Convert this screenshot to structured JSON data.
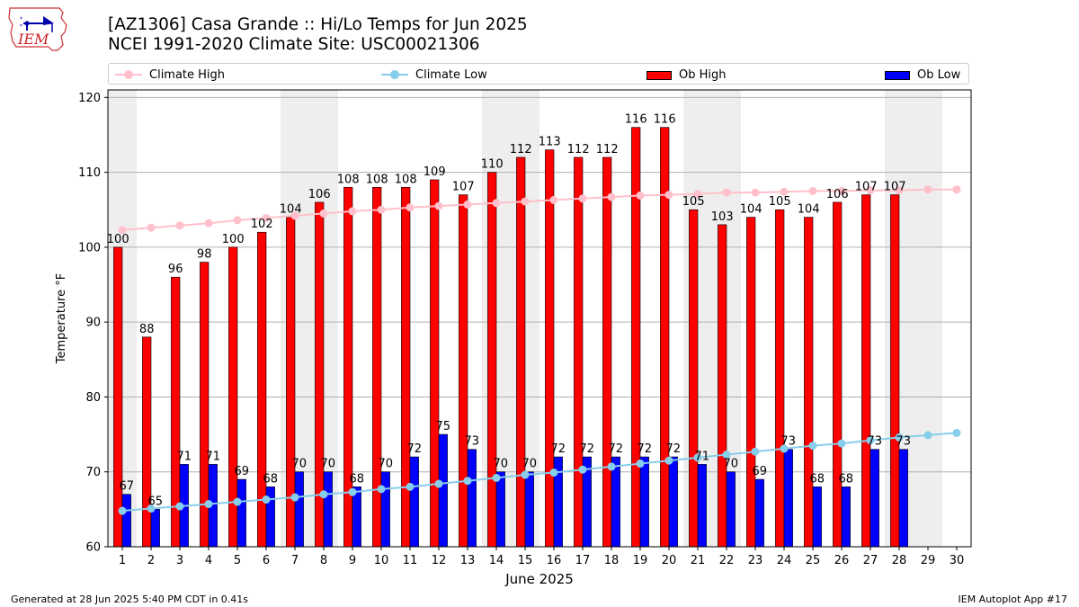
{
  "header": {
    "logo_text": "IEM",
    "title_line1": "[AZ1306] Casa Grande :: Hi/Lo Temps for Jun 2025",
    "title_line2": "NCEI 1991-2020 Climate Site: USC00021306"
  },
  "legend": {
    "climate_high": "Climate High",
    "climate_low": "Climate Low",
    "ob_high": "Ob High",
    "ob_low": "Ob Low"
  },
  "footer": {
    "generated": "Generated at 28 Jun 2025 5:40 PM CDT in 0.41s",
    "app": "IEM Autoplot App #17"
  },
  "colors": {
    "ob_high": "#ff0000",
    "ob_low": "#0000ff",
    "climate_high": "#ffc0cb",
    "climate_low": "#87ceeb",
    "weekend_band": "#eeeeee",
    "grid": "#b0b0b0"
  },
  "chart_data": {
    "type": "bar",
    "xlabel": "June 2025",
    "ylabel": "Temperature °F",
    "ylim": [
      60,
      121
    ],
    "yticks": [
      60,
      70,
      80,
      90,
      100,
      110,
      120
    ],
    "grid": "horizontal",
    "legend_position": "top",
    "x": [
      1,
      2,
      3,
      4,
      5,
      6,
      7,
      8,
      9,
      10,
      11,
      12,
      13,
      14,
      15,
      16,
      17,
      18,
      19,
      20,
      21,
      22,
      23,
      24,
      25,
      26,
      27,
      28,
      29,
      30
    ],
    "weekend_days": [
      1,
      7,
      8,
      14,
      15,
      21,
      22,
      28,
      29
    ],
    "series": [
      {
        "name": "Ob High",
        "kind": "bar",
        "values": [
          100,
          88,
          96,
          98,
          100,
          102,
          104,
          106,
          108,
          108,
          108,
          109,
          107,
          110,
          112,
          113,
          112,
          112,
          116,
          116,
          105,
          103,
          104,
          105,
          104,
          106,
          107,
          107,
          null,
          null
        ]
      },
      {
        "name": "Ob Low",
        "kind": "bar",
        "values": [
          67,
          65,
          71,
          71,
          69,
          68,
          70,
          70,
          68,
          70,
          72,
          75,
          73,
          70,
          70,
          72,
          72,
          72,
          72,
          72,
          71,
          70,
          69,
          73,
          68,
          68,
          73,
          73,
          null,
          null
        ]
      },
      {
        "name": "Climate High",
        "kind": "line",
        "values": [
          102.3,
          102.6,
          102.9,
          103.2,
          103.6,
          103.9,
          104.2,
          104.5,
          104.8,
          105.0,
          105.3,
          105.5,
          105.7,
          105.9,
          106.1,
          106.3,
          106.5,
          106.7,
          106.9,
          107.0,
          107.1,
          107.3,
          107.3,
          107.4,
          107.5,
          107.5,
          107.6,
          107.6,
          107.7,
          107.7
        ]
      },
      {
        "name": "Climate Low",
        "kind": "line",
        "values": [
          64.8,
          65.1,
          65.4,
          65.7,
          66.0,
          66.3,
          66.6,
          67.0,
          67.3,
          67.7,
          68.0,
          68.4,
          68.8,
          69.2,
          69.6,
          69.9,
          70.3,
          70.7,
          71.1,
          71.5,
          71.9,
          72.3,
          72.7,
          73.1,
          73.5,
          73.8,
          74.2,
          74.6,
          74.9,
          75.2
        ]
      }
    ]
  }
}
